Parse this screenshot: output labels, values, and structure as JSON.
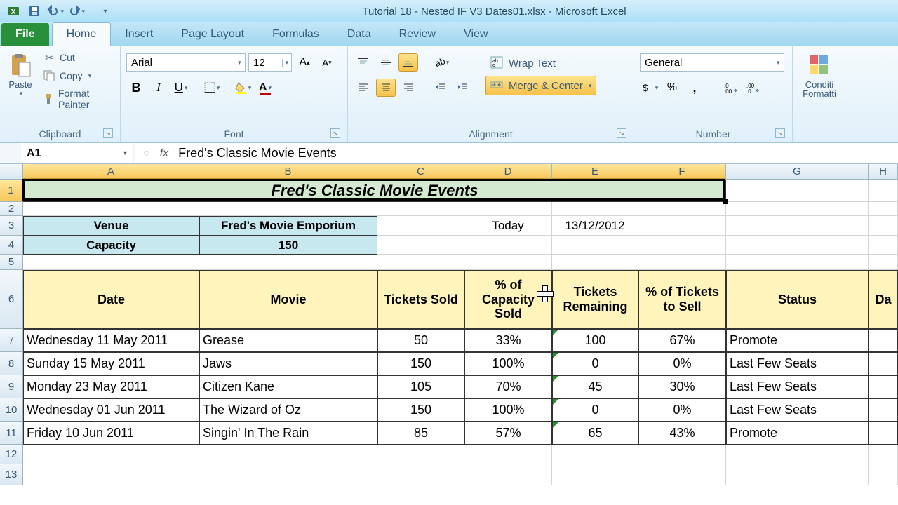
{
  "app": {
    "title": "Tutorial 18 - Nested IF V3 Dates01.xlsx - Microsoft Excel"
  },
  "tabs": {
    "file": "File",
    "items": [
      "Home",
      "Insert",
      "Page Layout",
      "Formulas",
      "Data",
      "Review",
      "View"
    ],
    "active": 0
  },
  "clipboard": {
    "paste": "Paste",
    "cut": "Cut",
    "copy": "Copy",
    "format": "Format Painter",
    "group": "Clipboard"
  },
  "font": {
    "name": "Arial",
    "size": "12",
    "group": "Font"
  },
  "alignment": {
    "wrap": "Wrap Text",
    "merge": "Merge & Center",
    "group": "Alignment"
  },
  "number": {
    "format": "General",
    "group": "Number"
  },
  "styles": {
    "cond": "Conditi",
    "cond2": "Formatti",
    "group": ""
  },
  "namebox": "A1",
  "formula": "Fred's Classic Movie Events",
  "cols": {
    "letters": [
      "A",
      "B",
      "C",
      "D",
      "E",
      "F",
      "G",
      "H"
    ],
    "widths": [
      251,
      254,
      124,
      125,
      123,
      125,
      203,
      42
    ]
  },
  "rows": {
    "heights": [
      32,
      20,
      28,
      27,
      22,
      84,
      33,
      33,
      33,
      33,
      33,
      28,
      30
    ],
    "selected": 0
  },
  "sheet": {
    "title": "Fred's Classic Movie Events",
    "info": {
      "venue_lbl": "Venue",
      "venue": "Fred's Movie Emporium",
      "cap_lbl": "Capacity",
      "cap": "150",
      "today_lbl": "Today",
      "today": "13/12/2012"
    },
    "headers": [
      "Date",
      "Movie",
      "Tickets Sold",
      "% of Capacity Sold",
      "Tickets Remaining",
      "% of Tickets to Sell",
      "Status",
      "Da"
    ],
    "data": [
      {
        "date": "Wednesday 11 May 2011",
        "movie": "Grease",
        "sold": "50",
        "pct": "33%",
        "rem": "100",
        "pctsell": "67%",
        "status": "Promote"
      },
      {
        "date": "Sunday 15 May 2011",
        "movie": "Jaws",
        "sold": "150",
        "pct": "100%",
        "rem": "0",
        "pctsell": "0%",
        "status": "Last Few Seats"
      },
      {
        "date": "Monday 23 May 2011",
        "movie": "Citizen Kane",
        "sold": "105",
        "pct": "70%",
        "rem": "45",
        "pctsell": "30%",
        "status": "Last Few Seats"
      },
      {
        "date": "Wednesday 01 Jun 2011",
        "movie": "The Wizard of Oz",
        "sold": "150",
        "pct": "100%",
        "rem": "0",
        "pctsell": "0%",
        "status": "Last Few Seats"
      },
      {
        "date": "Friday 10 Jun 2011",
        "movie": "Singin' In The Rain",
        "sold": "85",
        "pct": "57%",
        "rem": "65",
        "pctsell": "43%",
        "status": "Promote"
      }
    ]
  }
}
